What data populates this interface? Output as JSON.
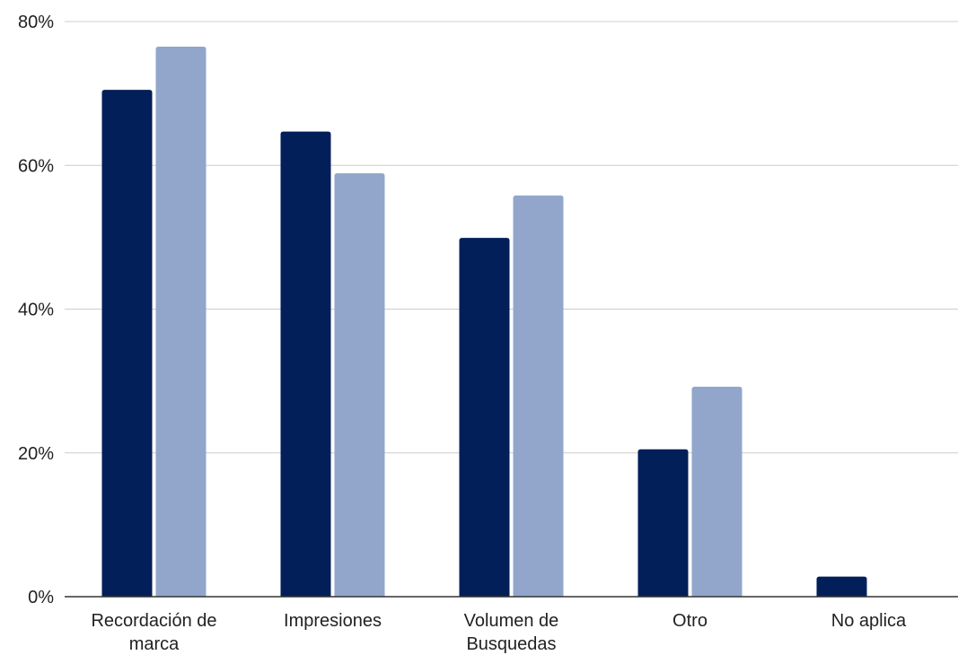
{
  "chart_data": {
    "type": "bar",
    "categories": [
      [
        "Recordación de",
        "marca"
      ],
      [
        "Impresiones"
      ],
      [
        "Volumen de",
        "Busquedas"
      ],
      [
        "Otro"
      ],
      [
        "No aplica"
      ]
    ],
    "series": [
      {
        "values": [
          70.5,
          64.7,
          49.9,
          20.5,
          2.8
        ],
        "color": "#031f59"
      },
      {
        "values": [
          76.5,
          58.9,
          55.8,
          29.2,
          0
        ],
        "color": "#92a6cb"
      }
    ],
    "ylim": [
      0,
      80
    ],
    "yticks": [
      {
        "value": 0,
        "label": "0%"
      },
      {
        "value": 20,
        "label": "20%"
      },
      {
        "value": 40,
        "label": "40%"
      },
      {
        "value": 60,
        "label": "60%"
      },
      {
        "value": 80,
        "label": "80%"
      }
    ],
    "grid": true,
    "legend": "none",
    "title": "",
    "xlabel": "",
    "ylabel": ""
  }
}
